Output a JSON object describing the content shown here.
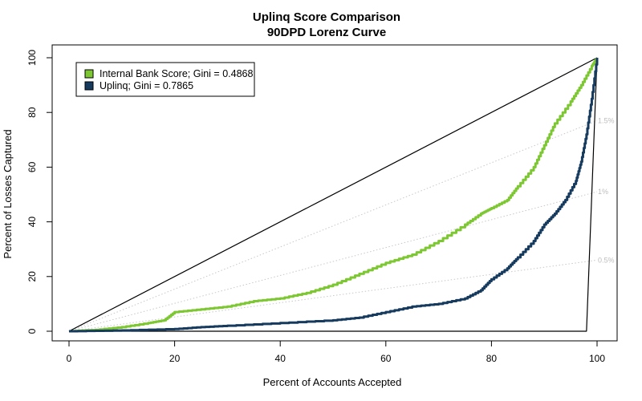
{
  "chart_data": {
    "type": "line",
    "title": "Uplinq Score Comparison",
    "subtitle": "90DPD Lorenz Curve",
    "xlabel": "Percent of Accounts Accepted",
    "ylabel": "Percent of Losses Captured",
    "xlim": [
      0,
      100
    ],
    "ylim": [
      0,
      100
    ],
    "xticks": [
      0,
      20,
      40,
      60,
      80,
      100
    ],
    "yticks": [
      0,
      20,
      40,
      60,
      80,
      100
    ],
    "legend_position": "top-left",
    "series": [
      {
        "name": "Internal Bank Score; Gini = 0.4868",
        "color": "#7dc832",
        "x": [
          0,
          5,
          10,
          15,
          18,
          20,
          25,
          30,
          35,
          40,
          45,
          50,
          55,
          60,
          65,
          70,
          75,
          78,
          80,
          83,
          85,
          88,
          90,
          92,
          95,
          97,
          99,
          100
        ],
        "y": [
          0,
          0.5,
          1.5,
          3,
          4,
          7,
          8,
          9,
          11,
          12,
          14,
          17,
          21,
          25,
          28,
          33,
          39,
          43,
          45,
          48,
          53,
          60,
          68,
          76,
          84,
          90,
          97,
          100
        ]
      },
      {
        "name": "Uplinq; Gini = 0.7865",
        "color": "#163b5e",
        "x": [
          0,
          10,
          20,
          25,
          30,
          40,
          50,
          55,
          60,
          65,
          70,
          75,
          78,
          80,
          83,
          85,
          88,
          90,
          92,
          94,
          96,
          97,
          98,
          99,
          100
        ],
        "y": [
          0,
          0.3,
          0.8,
          1.5,
          2,
          3,
          4,
          5,
          7,
          9,
          10,
          12,
          15,
          19,
          23,
          27,
          33,
          39,
          43,
          48,
          55,
          62,
          72,
          85,
          100
        ]
      },
      {
        "name": "",
        "color": "#000000",
        "x": [
          0,
          100
        ],
        "y": [
          0,
          100
        ]
      },
      {
        "name": "",
        "color": "#000000",
        "x": [
          0,
          98,
          100
        ],
        "y": [
          0,
          0,
          100
        ]
      }
    ],
    "reference_lines": [
      {
        "label": "1.5%",
        "x": [
          0,
          100
        ],
        "y": [
          0,
          77
        ]
      },
      {
        "label": "1%",
        "x": [
          0,
          100
        ],
        "y": [
          0,
          51
        ]
      },
      {
        "label": "0.5%",
        "x": [
          0,
          100
        ],
        "y": [
          0,
          26
        ]
      }
    ]
  }
}
